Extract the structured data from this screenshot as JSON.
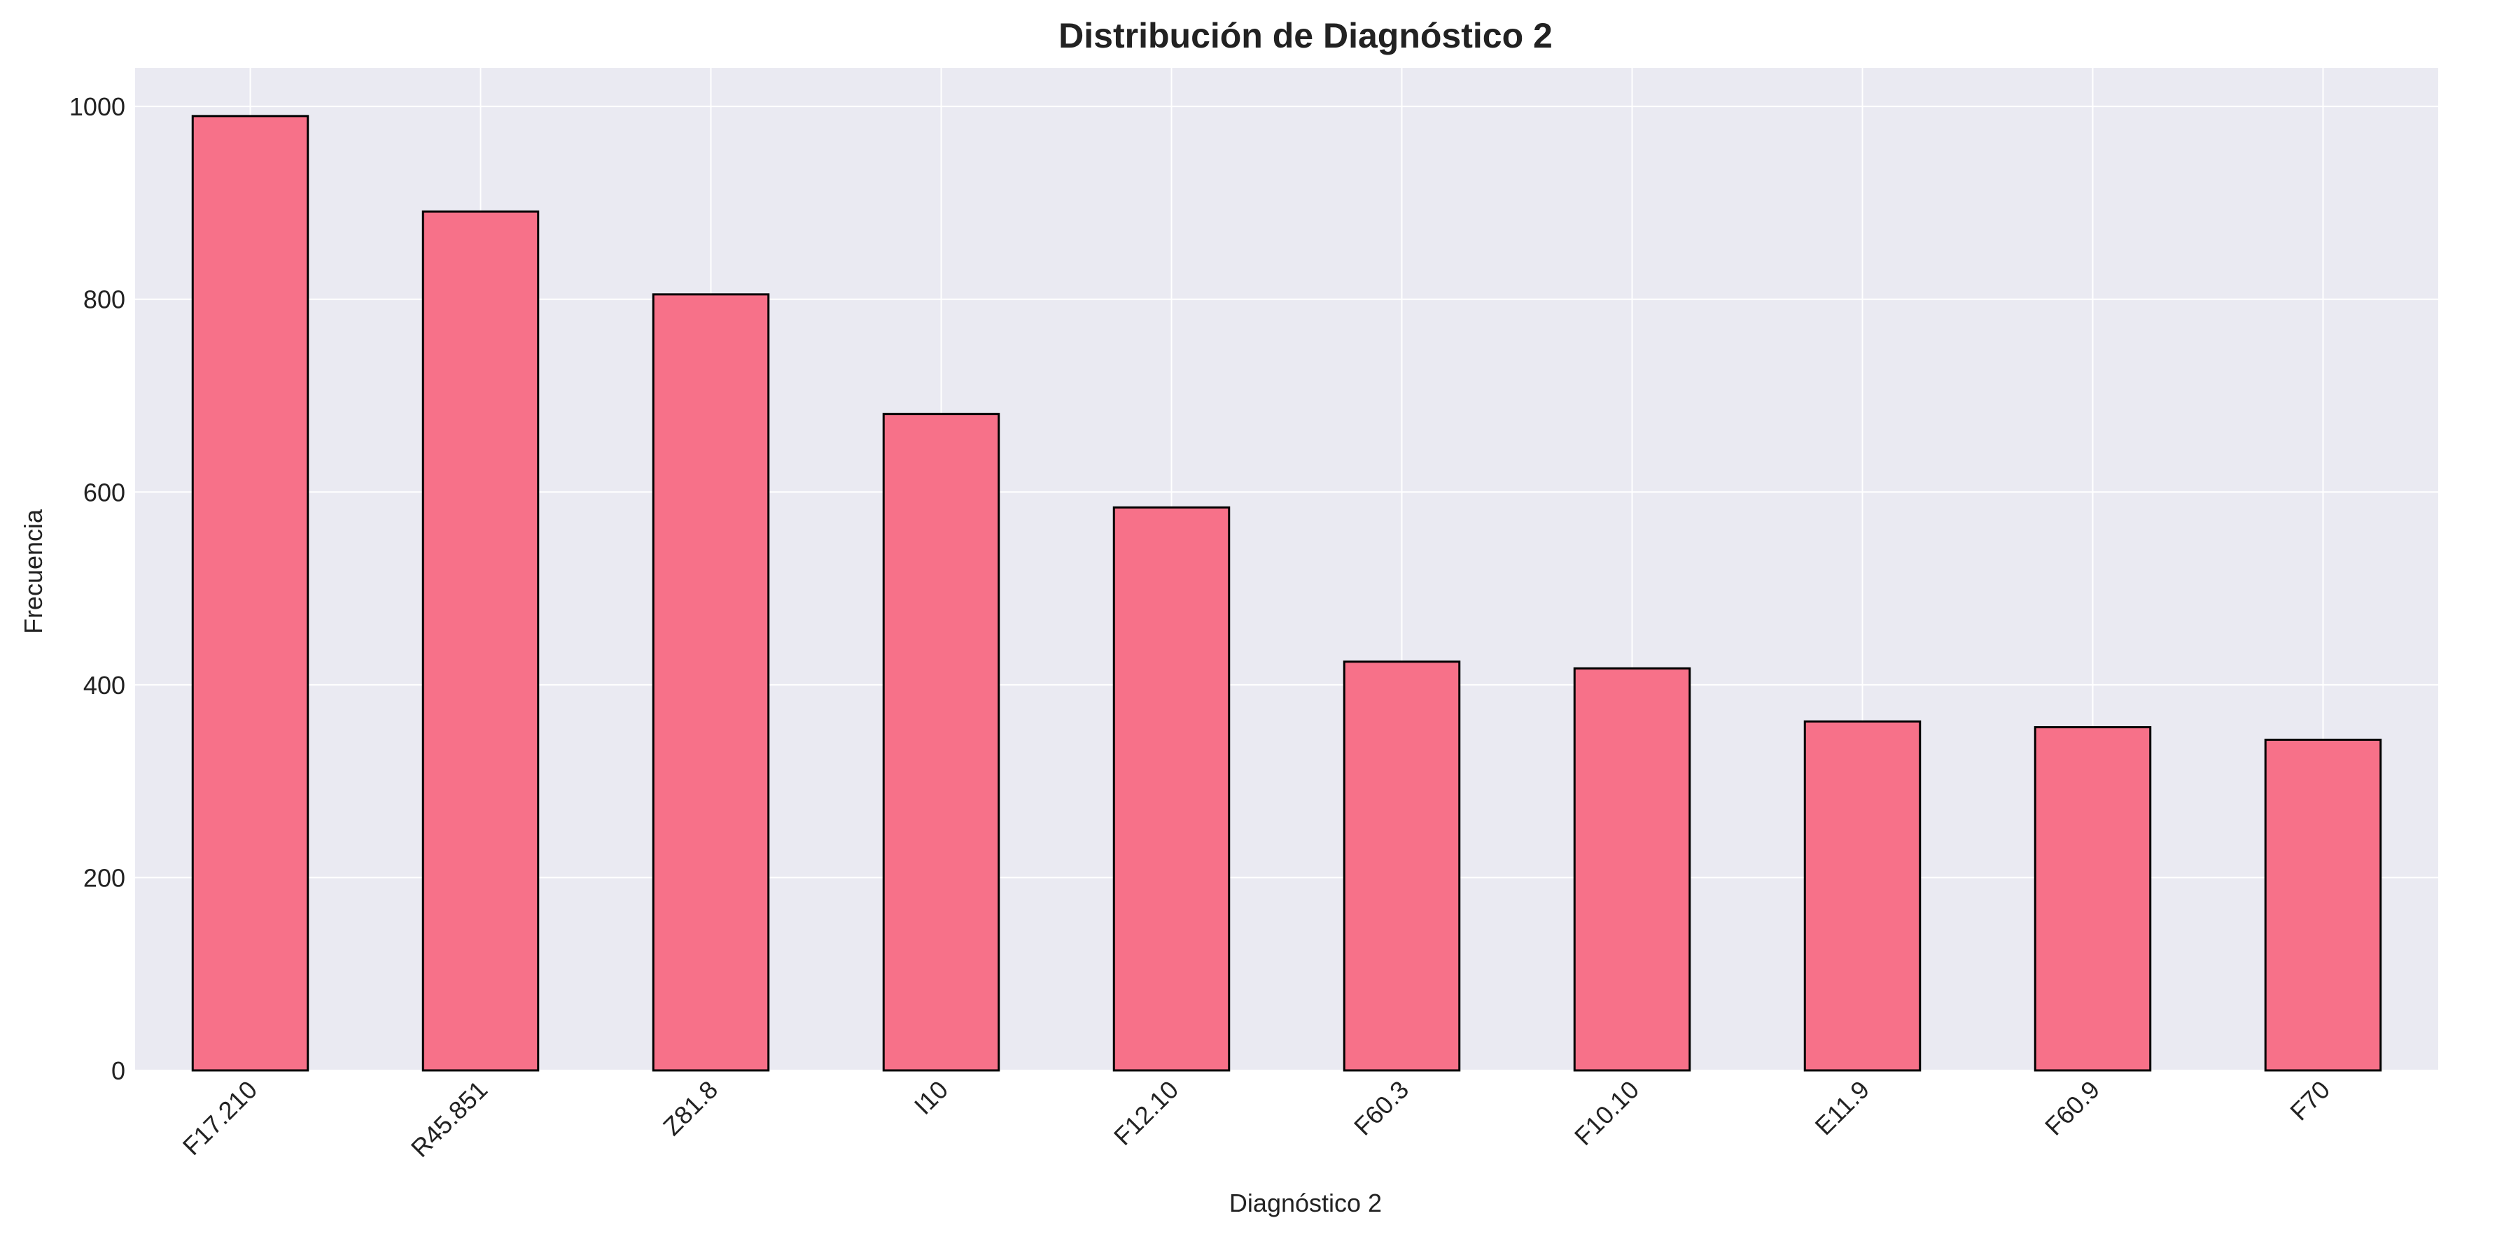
{
  "chart_data": {
    "type": "bar",
    "title": "Distribución de Diagnóstico 2",
    "xlabel": "Diagnóstico 2",
    "ylabel": "Frecuencia",
    "categories": [
      "F17.210",
      "R45.851",
      "Z81.8",
      "I10",
      "F12.10",
      "F60.3",
      "F10.10",
      "E11.9",
      "F60.9",
      "F70"
    ],
    "values": [
      990,
      891,
      805,
      681,
      584,
      424,
      417,
      362,
      356,
      343
    ],
    "ylim": [
      0,
      1040
    ],
    "yticks": [
      0,
      200,
      400,
      600,
      800,
      1000
    ],
    "grid": true,
    "legend": "none",
    "colors": {
      "bar_fill": "#f77189",
      "bar_edge": "#000000",
      "plot_background": "#eaeaf2",
      "grid": "#ffffff"
    }
  }
}
